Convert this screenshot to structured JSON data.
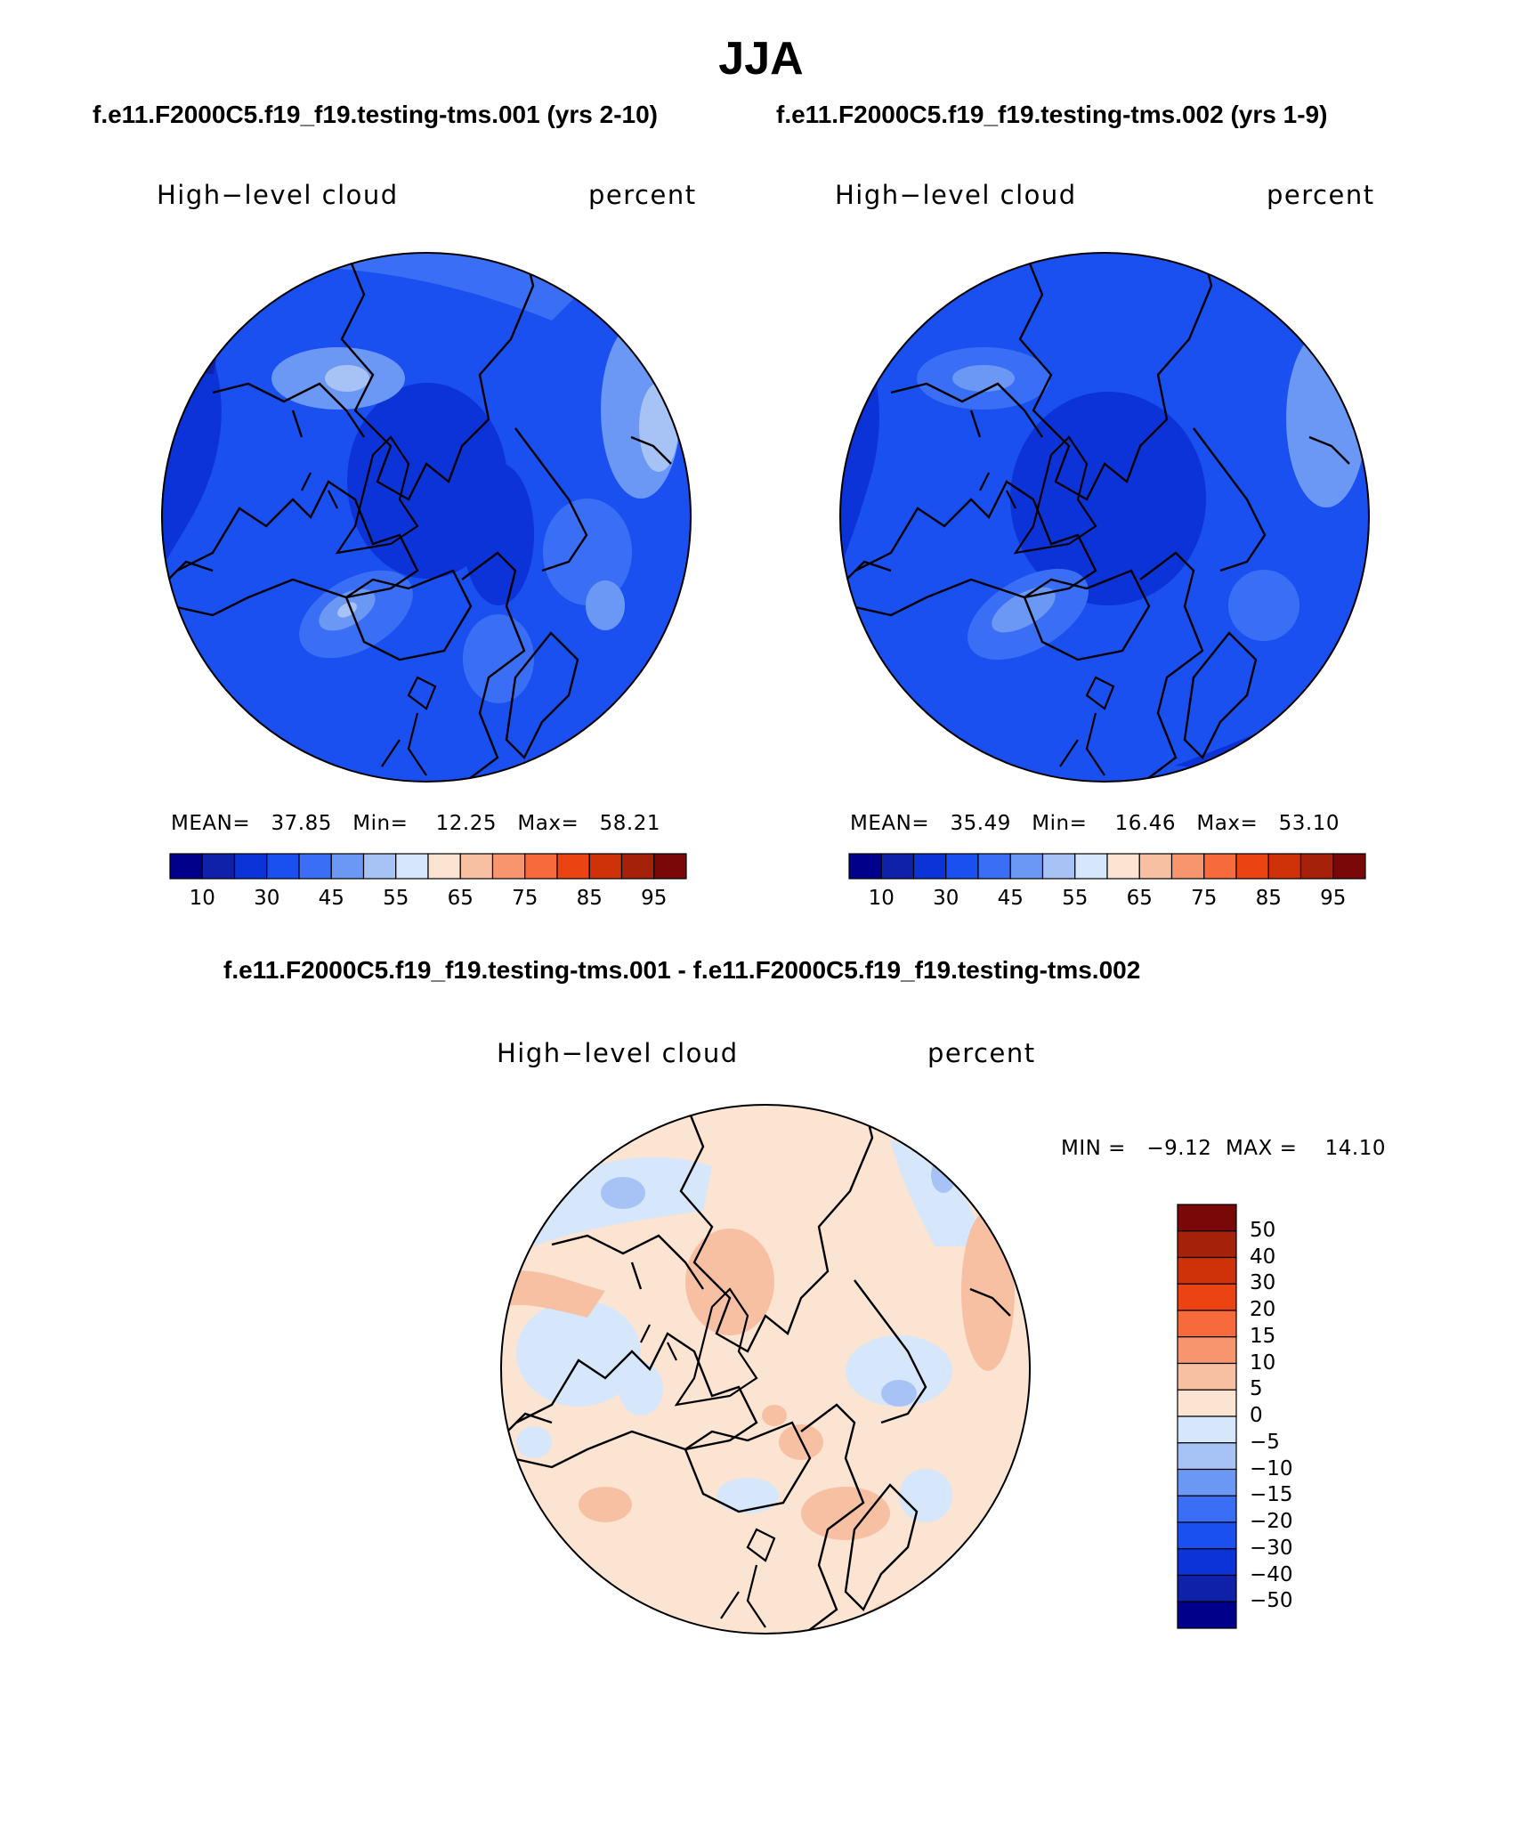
{
  "page": {
    "title": "JJA",
    "subtitle_left": "f.e11.F2000C5.f19_f19.testing-tms.001 (yrs 2-10)",
    "subtitle_right": "f.e11.F2000C5.f19_f19.testing-tms.002 (yrs 1-9)",
    "diff_title": "f.e11.F2000C5.f19_f19.testing-tms.001 - f.e11.F2000C5.f19_f19.testing-tms.002"
  },
  "panels": [
    {
      "variable": "High−level cloud",
      "units": "percent",
      "stats": "MEAN=   37.85   Min=    12.25   Max=   58.21",
      "mean": 37.85,
      "min": 12.25,
      "max": 58.21
    },
    {
      "variable": "High−level cloud",
      "units": "percent",
      "stats": "MEAN=   35.49   Min=    16.46   Max=   53.10",
      "mean": 35.49,
      "min": 16.46,
      "max": 53.1
    }
  ],
  "diff_panel": {
    "variable": "High−level cloud",
    "units": "percent",
    "stats": "MIN =   −9.12  MAX =    14.10",
    "min": -9.12,
    "max": 14.1
  },
  "colorbar_abs": {
    "colors": [
      "#00008b",
      "#0f21a8",
      "#0b33d8",
      "#1a4ff0",
      "#3a6ff5",
      "#6b97f5",
      "#a7c3f5",
      "#d6e6fb",
      "#fbe4d2",
      "#f8c0a2",
      "#f7966e",
      "#f66a3c",
      "#ec4312",
      "#cf3108",
      "#a5210a",
      "#7a0808"
    ],
    "tick_labels": [
      "10",
      "30",
      "45",
      "55",
      "65",
      "75",
      "85",
      "95"
    ]
  },
  "colorbar_diff": {
    "colors": [
      "#7a0808",
      "#a5210a",
      "#cf3108",
      "#ec4312",
      "#f66a3c",
      "#f7966e",
      "#f8c0a2",
      "#fbe4d2",
      "#d6e6fb",
      "#a7c3f5",
      "#6b97f5",
      "#3a6ff5",
      "#1a4ff0",
      "#0b33d8",
      "#0f21a8",
      "#00008b"
    ],
    "tick_labels": [
      "50",
      "40",
      "30",
      "20",
      "15",
      "10",
      "5",
      "0",
      "−5",
      "−10",
      "−15",
      "−20",
      "−30",
      "−40",
      "−50"
    ]
  }
}
